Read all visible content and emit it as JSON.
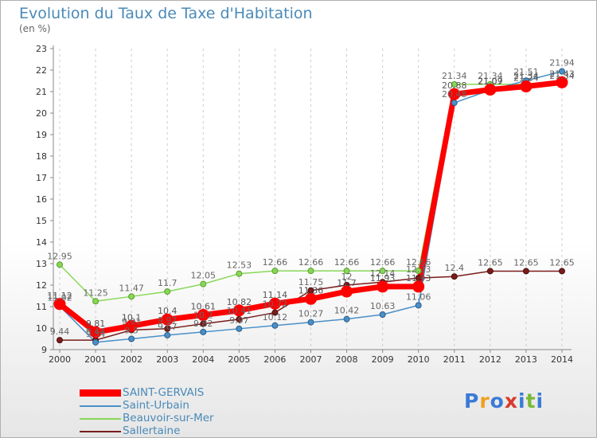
{
  "chart_data": {
    "type": "line",
    "title": "Evolution du Taux de Taxe d'Habitation",
    "subtitle": "(en %)",
    "xlabel": "",
    "ylabel": "",
    "x": [
      2000,
      2001,
      2002,
      2003,
      2004,
      2005,
      2006,
      2007,
      2008,
      2009,
      2010,
      2011,
      2012,
      2013,
      2014
    ],
    "ylim": [
      9,
      23
    ],
    "yticks": [
      9,
      10,
      11,
      12,
      13,
      14,
      15,
      16,
      17,
      18,
      19,
      20,
      21,
      22,
      23
    ],
    "grid": "vertical dashed",
    "legend_position": "bottom-left",
    "series": [
      {
        "name": "SAINT-GERVAIS",
        "color": "#ff0000",
        "values": [
          11.12,
          9.81,
          10.1,
          10.4,
          10.61,
          10.82,
          11.14,
          11.36,
          11.7,
          11.93,
          11.93,
          20.88,
          21.09,
          21.24,
          21.43
        ],
        "labels": [
          "11.12",
          "9.81",
          "10.1",
          "10.4",
          "10.61",
          "10.82",
          "11.14",
          "11.36",
          "11.7",
          "11.93",
          "11.93",
          "20.88",
          "21.09",
          "21.24",
          "21.43"
        ]
      },
      {
        "name": "Saint-Urbain",
        "color": "#4a90c8",
        "values": [
          11.02,
          9.34,
          9.5,
          9.67,
          9.82,
          9.97,
          10.12,
          10.27,
          10.42,
          10.63,
          11.06,
          20.48,
          21.07,
          21.51,
          21.94
        ],
        "labels": [
          "11.02",
          "9.34",
          "9.5",
          "9.67",
          "9.82",
          "9.97",
          "10.12",
          "10.27",
          "10.42",
          "10.63",
          "11.06",
          "20.48",
          "21.07",
          "21.51",
          "21.94"
        ]
      },
      {
        "name": "Beauvoir-sur-Mer",
        "color": "#88d858",
        "values": [
          12.95,
          11.25,
          11.47,
          11.7,
          12.05,
          12.53,
          12.66,
          12.66,
          12.66,
          12.66,
          12.66,
          21.34,
          21.34,
          21.34,
          21.34
        ],
        "labels": [
          "12.95",
          "11.25",
          "11.47",
          "11.7",
          "12.05",
          "12.53",
          "12.66",
          "12.66",
          "12.66",
          "12.66",
          "12.66",
          "21.34",
          "21.34",
          "21.34",
          "21.34"
        ]
      },
      {
        "name": "Sallertaine",
        "color": "#7a1c1c",
        "values": [
          9.44,
          9.44,
          9.91,
          9.97,
          10.2,
          10.41,
          10.72,
          11.75,
          12.0,
          12.14,
          12.33,
          12.4,
          12.65,
          12.65,
          12.65
        ],
        "labels": [
          "9.44",
          "9.44",
          "9.91",
          "9.97",
          "10.2",
          "10.41",
          "10.72",
          "11.75",
          "12",
          "12.14",
          "12.33",
          "12.4",
          "12.65",
          "12.65",
          "12.65"
        ]
      }
    ]
  },
  "logo": {
    "text": "Proxiti",
    "letters": [
      "P",
      "r",
      "o",
      "x",
      "i",
      "t",
      "i"
    ],
    "colors": [
      "#3a7bd5",
      "#f0a020",
      "#3a7bd5",
      "#d83a2a",
      "#3a7bd5",
      "#7ab83a",
      "#3a7bd5"
    ]
  }
}
